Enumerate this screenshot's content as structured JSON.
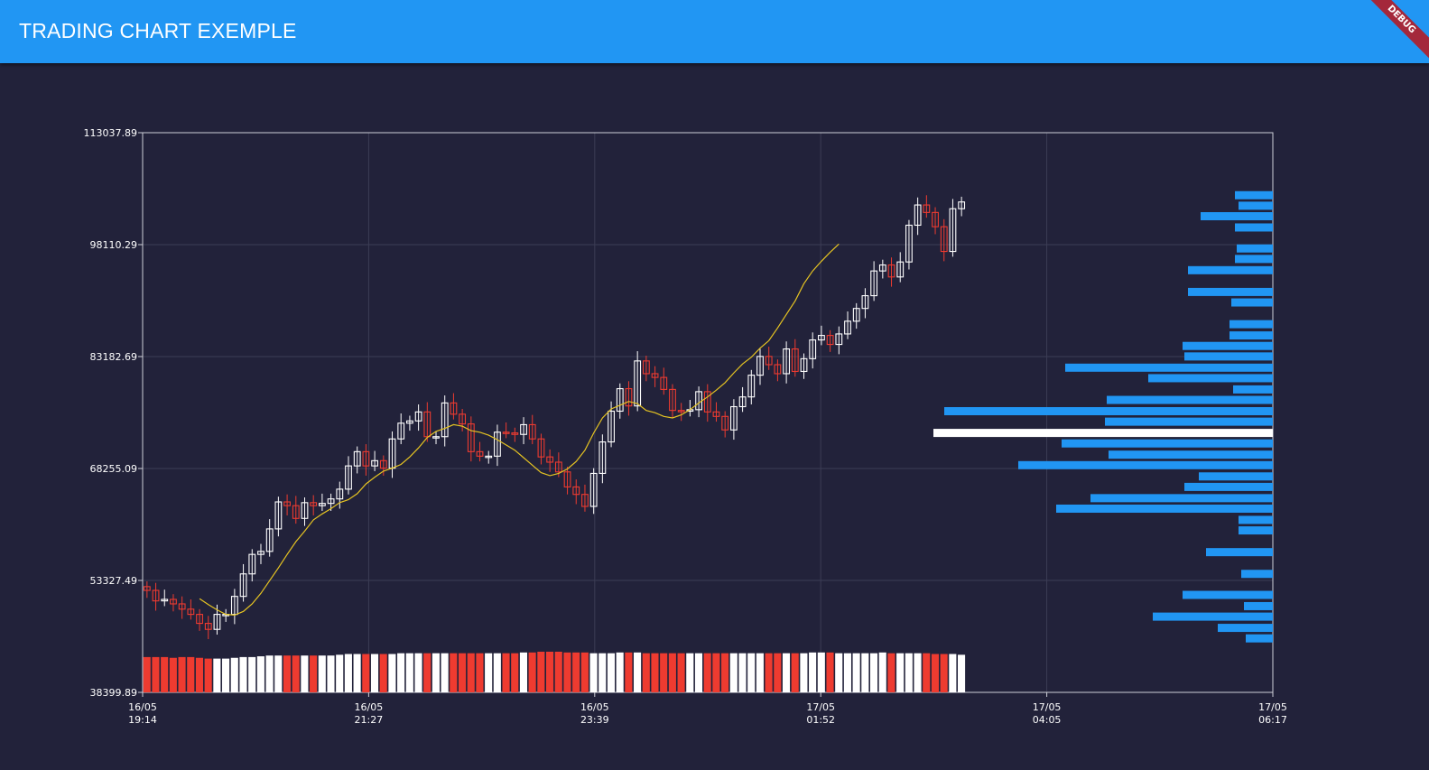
{
  "appbar": {
    "title": "TRADING CHART EXEMPLE",
    "debug_label": "DEBUG"
  },
  "colors": {
    "appbar": "#2196f3",
    "background": "#22223a",
    "bull": "#ffffff",
    "bear": "#ee3b30",
    "ma": "#e6c422",
    "volume_profile": "#2196f3",
    "volume_profile_highlight": "#ffffff",
    "grid": "#3c3d55",
    "axis": "#cfd0d8"
  },
  "chart_data": {
    "type": "candlestick",
    "title": "",
    "y_ticks": [
      "113037.89",
      "98110.29",
      "83182.69",
      "68255.09",
      "53327.49",
      "38399.89"
    ],
    "ylim": [
      38399.89,
      113037.89
    ],
    "x_ticks": [
      {
        "date": "16/05",
        "time": "19:14"
      },
      {
        "date": "16/05",
        "time": "21:27"
      },
      {
        "date": "16/05",
        "time": "23:39"
      },
      {
        "date": "17/05",
        "time": "01:52"
      },
      {
        "date": "17/05",
        "time": "04:05"
      },
      {
        "date": "17/05",
        "time": "06:17"
      }
    ],
    "close": [
      52000,
      50600,
      50800,
      50200,
      49500,
      48800,
      47600,
      46800,
      48800,
      48800,
      51200,
      54200,
      56800,
      57200,
      60200,
      63800,
      63300,
      61600,
      63700,
      63300,
      63600,
      64200,
      65500,
      68600,
      70500,
      68600,
      69300,
      68300,
      72200,
      74300,
      74600,
      75800,
      72500,
      72500,
      77000,
      75500,
      74200,
      70500,
      69900,
      69900,
      73100,
      73000,
      72800,
      74100,
      72200,
      69800,
      69100,
      67800,
      65800,
      64800,
      63200,
      67600,
      71800,
      75900,
      78900,
      76600,
      82600,
      80900,
      80400,
      78800,
      76000,
      75900,
      76100,
      78500,
      75800,
      75200,
      73400,
      76500,
      77800,
      80700,
      83200,
      82100,
      80900,
      84200,
      81200,
      82900,
      85400,
      86000,
      84800,
      86200,
      87900,
      89600,
      91300,
      94600,
      95400,
      93800,
      95800,
      100700,
      103400,
      102400,
      100500,
      97200,
      102900,
      103800
    ],
    "ma_line": [
      50900,
      50100,
      49400,
      48800,
      48700,
      49200,
      50200,
      51600,
      53300,
      55000,
      56800,
      58500,
      59900,
      61400,
      62200,
      62900,
      63700,
      64100,
      64900,
      66200,
      67100,
      67900,
      68300,
      68800,
      69800,
      71000,
      72400,
      73200,
      73600,
      74100,
      73900,
      73300,
      73100,
      72700,
      72100,
      71400,
      70700,
      69700,
      68700,
      67700,
      67300,
      67600,
      68200,
      69200,
      70700,
      73000,
      75000,
      76200,
      76700,
      77200,
      76900,
      76000,
      75700,
      75200,
      75000,
      75400,
      76100,
      77000,
      77800,
      78700,
      79700,
      81000,
      82200,
      83100,
      84300,
      85300,
      87000,
      88800,
      90600,
      92900,
      94600,
      95900,
      97100,
      98200
    ],
    "ma_start_index": 6,
    "volume": [
      46,
      46,
      46,
      45,
      46,
      46,
      45,
      44,
      44,
      44,
      45,
      46,
      46,
      47,
      48,
      48,
      48,
      48,
      48,
      48,
      48,
      48,
      49,
      50,
      50,
      50,
      50,
      50,
      50,
      51,
      51,
      51,
      51,
      51,
      51,
      51,
      51,
      51,
      51,
      51,
      51,
      51,
      51,
      52,
      52,
      53,
      53,
      53,
      52,
      52,
      52,
      51,
      51,
      51,
      52,
      52,
      52,
      51,
      51,
      51,
      51,
      51,
      51,
      51,
      51,
      51,
      51,
      51,
      51,
      51,
      51,
      51,
      51,
      51,
      51,
      51,
      52,
      52,
      52,
      51,
      51,
      51,
      51,
      51,
      52,
      51,
      51,
      51,
      51,
      51,
      50,
      50,
      50,
      49
    ],
    "volume_bear": [
      1,
      1,
      1,
      1,
      1,
      1,
      1,
      1,
      0,
      0,
      0,
      0,
      0,
      0,
      0,
      0,
      1,
      1,
      0,
      1,
      0,
      0,
      0,
      0,
      0,
      1,
      0,
      1,
      0,
      0,
      0,
      0,
      1,
      0,
      0,
      1,
      1,
      1,
      1,
      0,
      0,
      1,
      1,
      0,
      1,
      1,
      1,
      1,
      1,
      1,
      1,
      0,
      0,
      0,
      0,
      1,
      0,
      1,
      1,
      1,
      1,
      1,
      0,
      0,
      1,
      1,
      1,
      0,
      0,
      0,
      0,
      1,
      1,
      0,
      1,
      0,
      0,
      0,
      1,
      0,
      0,
      0,
      0,
      0,
      0,
      1,
      0,
      0,
      0,
      1,
      1,
      1,
      0,
      0
    ],
    "volume_profile": [
      {
        "price": 104700,
        "size": 42
      },
      {
        "price": 103300,
        "size": 38
      },
      {
        "price": 101900,
        "size": 80
      },
      {
        "price": 100400,
        "size": 42
      },
      {
        "price": 97600,
        "size": 40
      },
      {
        "price": 96200,
        "size": 42
      },
      {
        "price": 94700,
        "size": 94
      },
      {
        "price": 91800,
        "size": 94
      },
      {
        "price": 90400,
        "size": 46
      },
      {
        "price": 87500,
        "size": 48
      },
      {
        "price": 86000,
        "size": 48
      },
      {
        "price": 84600,
        "size": 100
      },
      {
        "price": 83200,
        "size": 98
      },
      {
        "price": 81700,
        "size": 230
      },
      {
        "price": 80300,
        "size": 138
      },
      {
        "price": 78800,
        "size": 44
      },
      {
        "price": 77400,
        "size": 184
      },
      {
        "price": 75900,
        "size": 364
      },
      {
        "price": 74500,
        "size": 186
      },
      {
        "price": 73000,
        "size": 376,
        "highlight": true
      },
      {
        "price": 71600,
        "size": 234
      },
      {
        "price": 70100,
        "size": 182
      },
      {
        "price": 68700,
        "size": 282
      },
      {
        "price": 67200,
        "size": 82
      },
      {
        "price": 65800,
        "size": 98
      },
      {
        "price": 64300,
        "size": 202
      },
      {
        "price": 62900,
        "size": 240
      },
      {
        "price": 61400,
        "size": 38
      },
      {
        "price": 60000,
        "size": 38
      },
      {
        "price": 57100,
        "size": 74
      },
      {
        "price": 54200,
        "size": 35
      },
      {
        "price": 51400,
        "size": 100
      },
      {
        "price": 49900,
        "size": 32
      },
      {
        "price": 48500,
        "size": 133
      },
      {
        "price": 47000,
        "size": 61
      },
      {
        "price": 45600,
        "size": 30
      }
    ],
    "grid": true
  }
}
